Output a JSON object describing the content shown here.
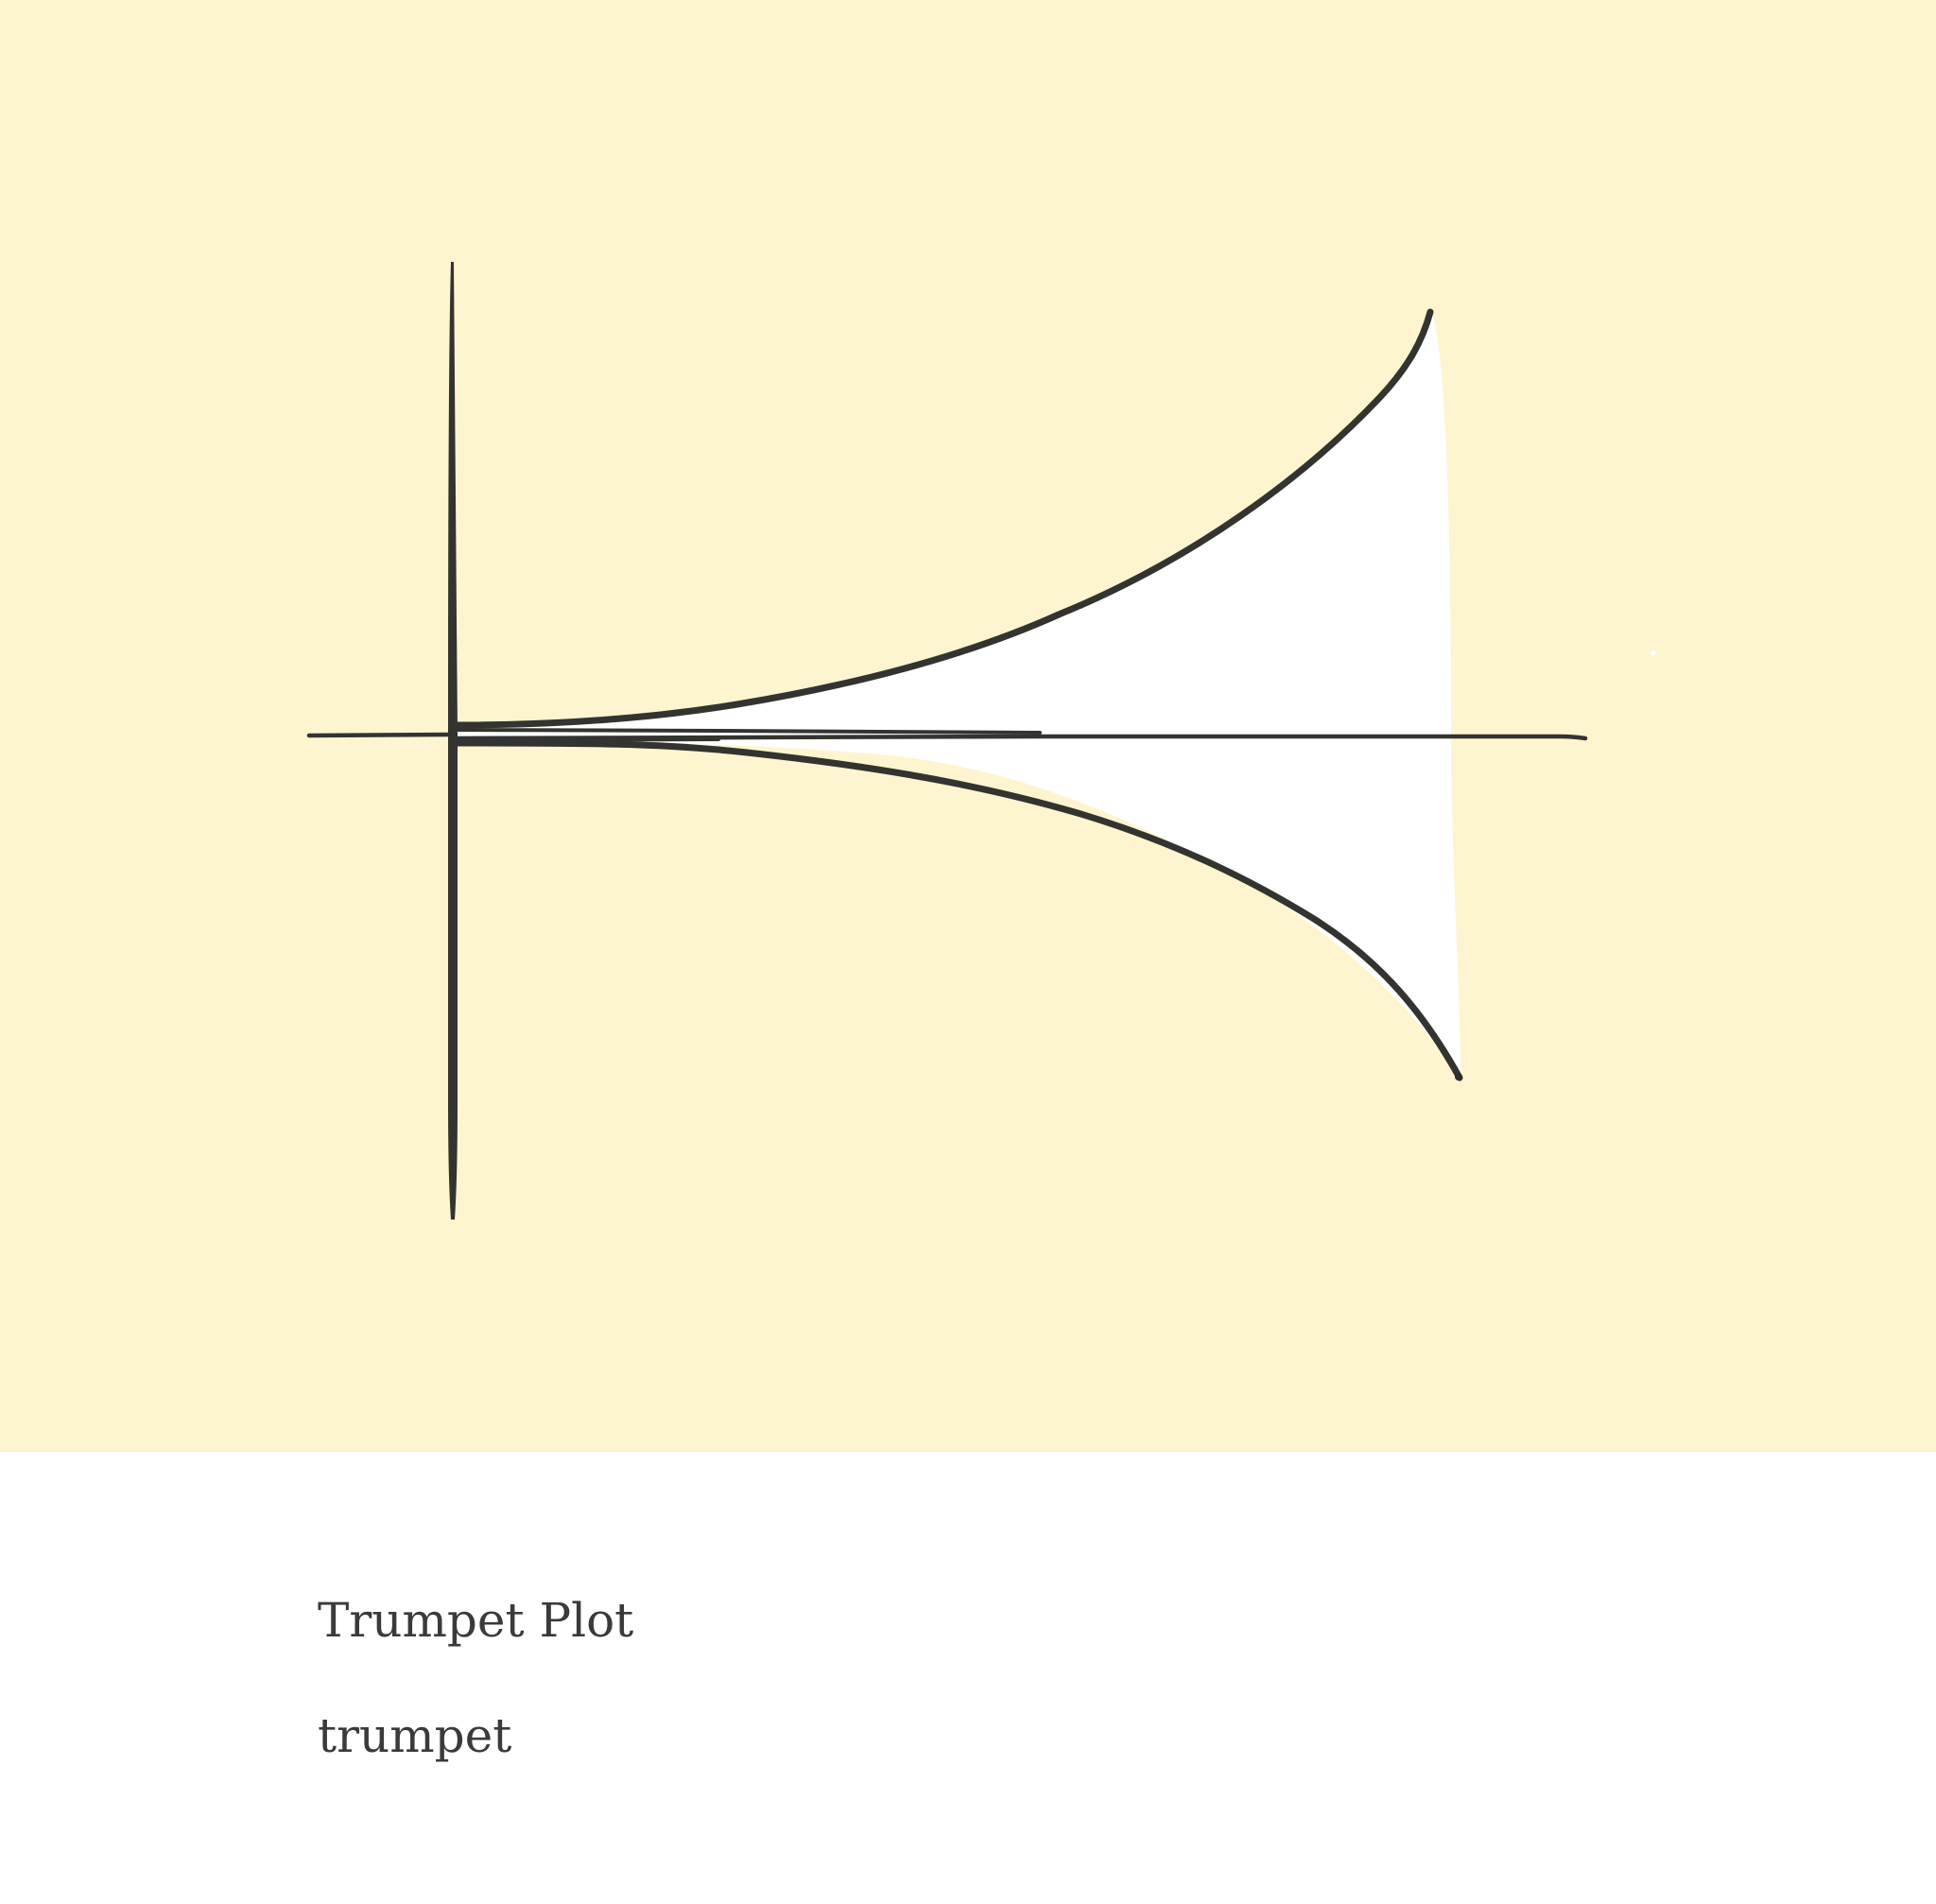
{
  "caption": {
    "title": "Trumpet Plot",
    "label": "trumpet"
  },
  "colors": {
    "panel_background": "#fdf5cf",
    "page_background": "#ffffff",
    "bell_fill": "#ffffff",
    "stroke": "#333330",
    "text": "#3a3a3a"
  },
  "figure": {
    "shape": "trumpet",
    "elements": [
      "vertical-axis",
      "horizontal-axis",
      "upper-curve",
      "lower-curve",
      "bell-fill"
    ]
  }
}
